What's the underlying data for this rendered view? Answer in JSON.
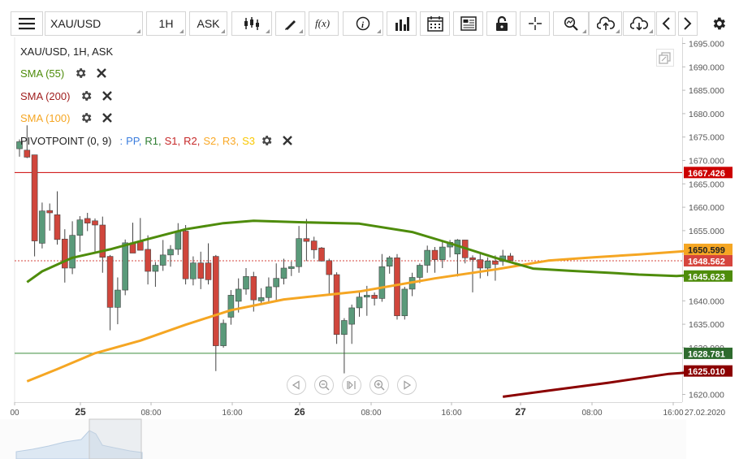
{
  "toolbar": {
    "symbol": "XAU/USD",
    "timeframe": "1H",
    "price_type": "ASK",
    "icons": [
      "menu-icon",
      "candlestick-type-icon",
      "draw-pen-icon",
      "fx-indicator-icon",
      "info-icon",
      "volume-bars-icon",
      "calendar-icon",
      "news-icon",
      "lock-icon",
      "crosshair-icon",
      "zoom-icon",
      "cloud-upload-icon",
      "cloud-download-icon",
      "chevron-left-icon",
      "chevron-right-icon",
      "gear-icon"
    ]
  },
  "legend": {
    "title": "XAU/USD, 1H, ASK",
    "sma55": "SMA (55)",
    "sma200": "SMA (200)",
    "sma100": "SMA (100)",
    "pivot_label": "PIVOTPOINT (0, 9)",
    "pivot_sep": ":",
    "pivot_lines": [
      "PP,",
      "R1,",
      "S1,",
      "R2,",
      "S2,",
      "R3,",
      "S3"
    ],
    "pivot_colors": [
      "#3b7ddd",
      "#2e7d32",
      "#c62828",
      "#c62828",
      "#f9a825",
      "#f9a825",
      "#f9a825"
    ]
  },
  "colors": {
    "bull_candle": "#5a9a7a",
    "bear_candle": "#d0463c",
    "sma55": "#4e8c0b",
    "sma100": "#f5a623",
    "sma200": "#8b0000",
    "r1_line": "#cc0000",
    "s1_line": "#3e8e3e"
  },
  "axis": {
    "price_ticks": [
      "1695.000",
      "1690.000",
      "1685.000",
      "1680.000",
      "1675.000",
      "1670.000",
      "1665.000",
      "1660.000",
      "1655.000",
      "1650.000",
      "1645.000",
      "1640.000",
      "1635.000",
      "1630.000",
      "1625.000",
      "1620.000"
    ],
    "time_ticks": [
      "00",
      "25",
      "08:00",
      "16:00",
      "26",
      "08:00",
      "16:00",
      "27",
      "08:00",
      "16:00"
    ],
    "end_date": "27.02.2020"
  },
  "price_labels": {
    "r1": "1667.426",
    "sma100": "1650.599",
    "last": "1648.562",
    "sma55": "1645.623",
    "s1": "1628.781",
    "sma200": "1625.010"
  },
  "chart_data": {
    "type": "candlestick",
    "symbol": "XAU/USD",
    "timeframe": "1H",
    "ylim": [
      1618,
      1696
    ],
    "candles": [
      {
        "o": 1672.5,
        "h": 1674.5,
        "l": 1670.8,
        "c": 1674.0
      },
      {
        "o": 1672.2,
        "h": 1677.5,
        "l": 1670.5,
        "c": 1670.7
      },
      {
        "o": 1671.2,
        "h": 1671.2,
        "l": 1649.5,
        "c": 1652.8
      },
      {
        "o": 1652.3,
        "h": 1661.0,
        "l": 1651.2,
        "c": 1659.2
      },
      {
        "o": 1659.3,
        "h": 1660.8,
        "l": 1655.0,
        "c": 1658.8
      },
      {
        "o": 1658.4,
        "h": 1663.4,
        "l": 1652.0,
        "c": 1653.1
      },
      {
        "o": 1653.2,
        "h": 1655.3,
        "l": 1643.9,
        "c": 1647.0
      },
      {
        "o": 1647.0,
        "h": 1657.0,
        "l": 1645.7,
        "c": 1654.0
      },
      {
        "o": 1654.0,
        "h": 1658.1,
        "l": 1650.5,
        "c": 1657.3
      },
      {
        "o": 1657.6,
        "h": 1658.8,
        "l": 1654.9,
        "c": 1656.6
      },
      {
        "o": 1657.1,
        "h": 1657.6,
        "l": 1650.5,
        "c": 1656.2
      },
      {
        "o": 1656.2,
        "h": 1658.0,
        "l": 1646.0,
        "c": 1649.3
      },
      {
        "o": 1649.5,
        "h": 1649.8,
        "l": 1633.7,
        "c": 1638.6
      },
      {
        "o": 1638.6,
        "h": 1645.0,
        "l": 1635.0,
        "c": 1642.3
      },
      {
        "o": 1642.3,
        "h": 1653.1,
        "l": 1641.2,
        "c": 1652.4
      },
      {
        "o": 1652.4,
        "h": 1656.7,
        "l": 1650.5,
        "c": 1650.2
      },
      {
        "o": 1652.6,
        "h": 1657.7,
        "l": 1651.0,
        "c": 1650.8
      },
      {
        "o": 1651.0,
        "h": 1654.0,
        "l": 1643.5,
        "c": 1646.3
      },
      {
        "o": 1646.3,
        "h": 1648.3,
        "l": 1643.0,
        "c": 1647.6
      },
      {
        "o": 1647.6,
        "h": 1653.0,
        "l": 1646.4,
        "c": 1649.8
      },
      {
        "o": 1649.8,
        "h": 1651.9,
        "l": 1647.3,
        "c": 1651.0
      },
      {
        "o": 1651.0,
        "h": 1656.6,
        "l": 1649.8,
        "c": 1654.8
      },
      {
        "o": 1654.9,
        "h": 1656.2,
        "l": 1643.5,
        "c": 1644.7
      },
      {
        "o": 1644.7,
        "h": 1649.5,
        "l": 1643.3,
        "c": 1648.1
      },
      {
        "o": 1648.1,
        "h": 1650.5,
        "l": 1642.5,
        "c": 1644.8
      },
      {
        "o": 1648.1,
        "h": 1652.3,
        "l": 1643.5,
        "c": 1644.5
      },
      {
        "o": 1649.5,
        "h": 1649.8,
        "l": 1625.0,
        "c": 1630.4
      },
      {
        "o": 1630.4,
        "h": 1636.0,
        "l": 1630.0,
        "c": 1635.2
      },
      {
        "o": 1636.5,
        "h": 1642.3,
        "l": 1634.9,
        "c": 1641.2
      },
      {
        "o": 1639.9,
        "h": 1644.8,
        "l": 1637.5,
        "c": 1642.5
      },
      {
        "o": 1642.5,
        "h": 1647.0,
        "l": 1641.3,
        "c": 1645.2
      },
      {
        "o": 1645.2,
        "h": 1646.2,
        "l": 1637.7,
        "c": 1640.2
      },
      {
        "o": 1640.0,
        "h": 1642.7,
        "l": 1639.4,
        "c": 1640.7
      },
      {
        "o": 1640.7,
        "h": 1645.0,
        "l": 1639.6,
        "c": 1643.0
      },
      {
        "o": 1643.0,
        "h": 1648.0,
        "l": 1640.0,
        "c": 1644.8
      },
      {
        "o": 1644.8,
        "h": 1649.0,
        "l": 1643.5,
        "c": 1647.0
      },
      {
        "o": 1646.9,
        "h": 1648.4,
        "l": 1645.3,
        "c": 1647.3
      },
      {
        "o": 1647.3,
        "h": 1656.0,
        "l": 1646.0,
        "c": 1653.3
      },
      {
        "o": 1653.3,
        "h": 1657.5,
        "l": 1648.5,
        "c": 1652.7
      },
      {
        "o": 1652.8,
        "h": 1653.7,
        "l": 1649.0,
        "c": 1650.9
      },
      {
        "o": 1651.3,
        "h": 1651.5,
        "l": 1648.4,
        "c": 1648.5
      },
      {
        "o": 1648.6,
        "h": 1649.0,
        "l": 1641.5,
        "c": 1645.6
      },
      {
        "o": 1645.6,
        "h": 1646.1,
        "l": 1630.8,
        "c": 1632.8
      },
      {
        "o": 1632.8,
        "h": 1636.3,
        "l": 1624.5,
        "c": 1635.8
      },
      {
        "o": 1635.0,
        "h": 1639.2,
        "l": 1630.8,
        "c": 1638.5
      },
      {
        "o": 1638.5,
        "h": 1642.0,
        "l": 1636.6,
        "c": 1640.8
      },
      {
        "o": 1640.8,
        "h": 1643.2,
        "l": 1636.8,
        "c": 1641.2
      },
      {
        "o": 1641.2,
        "h": 1641.8,
        "l": 1639.0,
        "c": 1640.5
      },
      {
        "o": 1640.5,
        "h": 1650.0,
        "l": 1639.8,
        "c": 1647.3
      },
      {
        "o": 1647.4,
        "h": 1649.6,
        "l": 1645.8,
        "c": 1649.2
      },
      {
        "o": 1649.2,
        "h": 1650.0,
        "l": 1636.0,
        "c": 1636.8
      },
      {
        "o": 1636.8,
        "h": 1643.0,
        "l": 1636.0,
        "c": 1642.5
      },
      {
        "o": 1642.5,
        "h": 1646.0,
        "l": 1641.0,
        "c": 1645.0
      },
      {
        "o": 1645.0,
        "h": 1648.0,
        "l": 1643.8,
        "c": 1647.6
      },
      {
        "o": 1647.6,
        "h": 1651.8,
        "l": 1646.0,
        "c": 1650.8
      },
      {
        "o": 1650.8,
        "h": 1651.5,
        "l": 1646.0,
        "c": 1648.8
      },
      {
        "o": 1648.8,
        "h": 1652.8,
        "l": 1647.0,
        "c": 1651.5
      },
      {
        "o": 1651.5,
        "h": 1653.0,
        "l": 1649.3,
        "c": 1652.5
      },
      {
        "o": 1650.0,
        "h": 1653.2,
        "l": 1645.2,
        "c": 1653.0
      },
      {
        "o": 1653.0,
        "h": 1653.0,
        "l": 1648.0,
        "c": 1649.2
      },
      {
        "o": 1649.2,
        "h": 1649.7,
        "l": 1641.8,
        "c": 1648.8
      },
      {
        "o": 1648.8,
        "h": 1650.4,
        "l": 1644.8,
        "c": 1647.0
      },
      {
        "o": 1647.0,
        "h": 1649.3,
        "l": 1645.3,
        "c": 1648.5
      },
      {
        "o": 1648.5,
        "h": 1649.7,
        "l": 1644.3,
        "c": 1647.8
      },
      {
        "o": 1648.4,
        "h": 1650.9,
        "l": 1647.5,
        "c": 1649.6
      },
      {
        "o": 1649.6,
        "h": 1650.2,
        "l": 1648.3,
        "c": 1648.6
      }
    ],
    "sma55": [
      [
        1,
        1644.0
      ],
      [
        3,
        1646.3
      ],
      [
        7,
        1649.2
      ],
      [
        12,
        1651.0
      ],
      [
        17,
        1653.2
      ],
      [
        22,
        1655.3
      ],
      [
        27,
        1656.6
      ],
      [
        31,
        1657.1
      ],
      [
        37,
        1656.8
      ],
      [
        45,
        1656.5
      ],
      [
        52,
        1654.7
      ],
      [
        57,
        1652.3
      ],
      [
        63,
        1649.2
      ],
      [
        68,
        1646.9
      ],
      [
        73,
        1646.4
      ],
      [
        78,
        1646.0
      ],
      [
        82,
        1645.6
      ],
      [
        87,
        1645.3
      ],
      [
        90,
        1645.6
      ],
      [
        93,
        1645.3
      ]
    ],
    "sma100": [
      [
        1,
        1622.8
      ],
      [
        5,
        1625.4
      ],
      [
        10,
        1628.8
      ],
      [
        16,
        1631.5
      ],
      [
        22,
        1634.9
      ],
      [
        28,
        1638.0
      ],
      [
        35,
        1640.3
      ],
      [
        45,
        1642.0
      ],
      [
        55,
        1644.8
      ],
      [
        63,
        1646.7
      ],
      [
        70,
        1648.6
      ],
      [
        76,
        1649.3
      ],
      [
        82,
        1649.9
      ],
      [
        88,
        1650.6
      ],
      [
        93,
        1651.0
      ]
    ],
    "sma200": [
      [
        64,
        1619.5
      ],
      [
        70,
        1620.8
      ],
      [
        78,
        1622.5
      ],
      [
        86,
        1624.4
      ],
      [
        93,
        1625.2
      ]
    ],
    "pivot_r1": 1667.426,
    "pivot_s1": 1628.781,
    "last_price": 1648.562
  }
}
